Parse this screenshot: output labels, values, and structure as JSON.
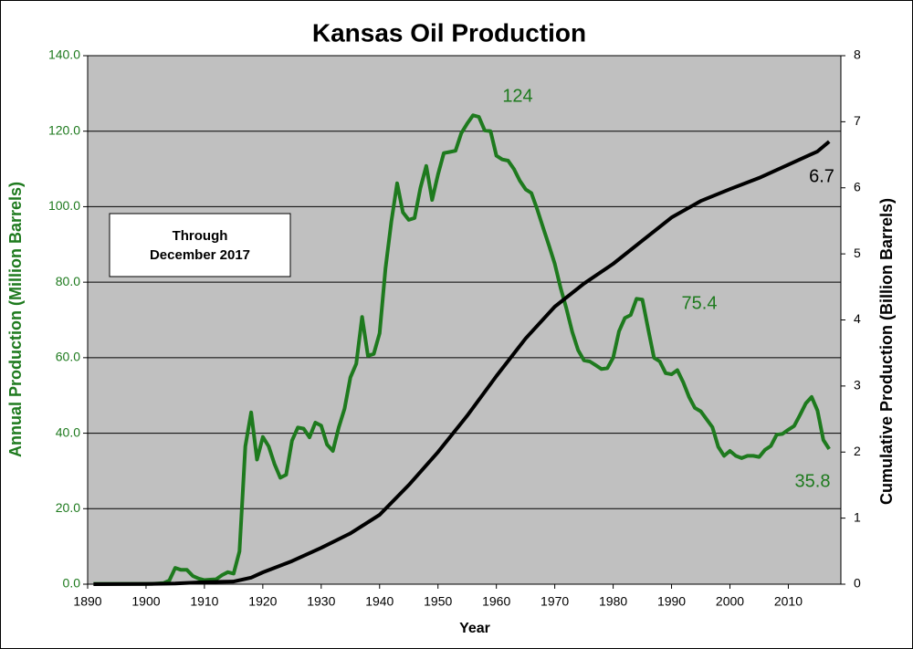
{
  "chart_data": {
    "type": "line",
    "title": "Kansas Oil Production",
    "note": [
      "Through",
      "December 2017"
    ],
    "xlabel": "Year",
    "ylabel": "Annual Production (Million Barrels)",
    "y2label": "Cumulative Production (Billion Barrels)",
    "xlim": [
      1890,
      2019
    ],
    "xticks": [
      1890,
      1900,
      1910,
      1920,
      1930,
      1940,
      1950,
      1960,
      1970,
      1980,
      1990,
      2000,
      2010
    ],
    "ylim": [
      0,
      140
    ],
    "yticks": [
      {
        "value": 0,
        "label": "0.0"
      },
      {
        "value": 20,
        "label": "20.0"
      },
      {
        "value": 40,
        "label": "40.0"
      },
      {
        "value": 60,
        "label": "60.0"
      },
      {
        "value": 80,
        "label": "80.0"
      },
      {
        "value": 100,
        "label": "100.0"
      },
      {
        "value": 120,
        "label": "120.0"
      },
      {
        "value": 140,
        "label": "140.0"
      }
    ],
    "y2lim": [
      0,
      8
    ],
    "y2ticks": [
      0,
      1,
      2,
      3,
      4,
      5,
      6,
      7,
      8
    ],
    "grid": true,
    "series": [
      {
        "name": "Annual Production",
        "color": "#1e7a1e",
        "x": [
          1891,
          1892,
          1893,
          1894,
          1895,
          1896,
          1897,
          1898,
          1899,
          1900,
          1901,
          1902,
          1903,
          1904,
          1905,
          1906,
          1907,
          1908,
          1909,
          1910,
          1911,
          1912,
          1913,
          1914,
          1915,
          1916,
          1917,
          1918,
          1919,
          1920,
          1921,
          1922,
          1923,
          1924,
          1925,
          1926,
          1927,
          1928,
          1929,
          1930,
          1931,
          1932,
          1933,
          1934,
          1935,
          1936,
          1937,
          1938,
          1939,
          1940,
          1941,
          1942,
          1943,
          1944,
          1945,
          1946,
          1947,
          1948,
          1949,
          1950,
          1951,
          1952,
          1953,
          1954,
          1955,
          1956,
          1957,
          1958,
          1959,
          1960,
          1961,
          1962,
          1963,
          1964,
          1965,
          1966,
          1967,
          1968,
          1969,
          1970,
          1971,
          1972,
          1973,
          1974,
          1975,
          1976,
          1977,
          1978,
          1979,
          1980,
          1981,
          1982,
          1983,
          1984,
          1985,
          1986,
          1987,
          1988,
          1989,
          1990,
          1991,
          1992,
          1993,
          1994,
          1995,
          1996,
          1997,
          1998,
          1999,
          2000,
          2001,
          2002,
          2003,
          2004,
          2005,
          2006,
          2007,
          2008,
          2009,
          2010,
          2011,
          2012,
          2013,
          2014,
          2015,
          2016,
          2017
        ],
        "values": [
          0.1,
          0.1,
          0.1,
          0.1,
          0.1,
          0.1,
          0.1,
          0.1,
          0.1,
          0.1,
          0.1,
          0.2,
          0.3,
          1,
          4.3,
          3.8,
          3.8,
          2.2,
          1.5,
          1.1,
          1.2,
          1.3,
          2.4,
          3.2,
          2.8,
          8.7,
          36.5,
          45.5,
          33,
          39,
          36.5,
          31.8,
          28.2,
          29,
          38,
          41.5,
          41.2,
          38.9,
          42.8,
          42,
          37,
          35.3,
          41.5,
          46.5,
          54.8,
          58.4,
          70.8,
          60.5,
          61,
          66.5,
          83.6,
          96,
          106.2,
          98.5,
          96.5,
          97,
          105,
          110.8,
          101.8,
          108.5,
          114.2,
          114.5,
          114.8,
          119.5,
          122,
          124.2,
          123.8,
          120.2,
          120,
          113.5,
          112.5,
          112.2,
          110,
          106.9,
          104.6,
          103.6,
          99.3,
          94.5,
          89.8,
          84.9,
          78.5,
          73,
          66.8,
          62,
          59.3,
          59,
          58,
          57,
          57.2,
          60,
          67,
          70.5,
          71.3,
          75.6,
          75.4,
          67.5,
          60,
          59,
          55.9,
          55.6,
          56.7,
          53.5,
          49.6,
          46.7,
          45.8,
          43.7,
          41.6,
          36.4,
          34,
          35.3,
          34,
          33.4,
          34,
          34,
          33.7,
          35.6,
          36.6,
          39.6,
          39.8,
          40.9,
          41.9,
          44.8,
          47.9,
          49.6,
          46,
          38.2,
          35.8
        ]
      },
      {
        "name": "Cumulative Production",
        "color": "#000000",
        "axis": "y2",
        "x": [
          1891,
          1900,
          1905,
          1910,
          1915,
          1918,
          1920,
          1925,
          1930,
          1935,
          1940,
          1945,
          1950,
          1955,
          1960,
          1965,
          1970,
          1975,
          1980,
          1985,
          1990,
          1995,
          2000,
          2005,
          2010,
          2015,
          2017
        ],
        "values": [
          0,
          0.003,
          0.01,
          0.03,
          0.04,
          0.1,
          0.18,
          0.35,
          0.55,
          0.77,
          1.05,
          1.5,
          2.0,
          2.55,
          3.15,
          3.72,
          4.2,
          4.55,
          4.85,
          5.2,
          5.55,
          5.8,
          5.98,
          6.15,
          6.35,
          6.55,
          6.7
        ]
      }
    ],
    "annotations": [
      "124",
      "75.4",
      "6.7",
      "35.8"
    ]
  }
}
